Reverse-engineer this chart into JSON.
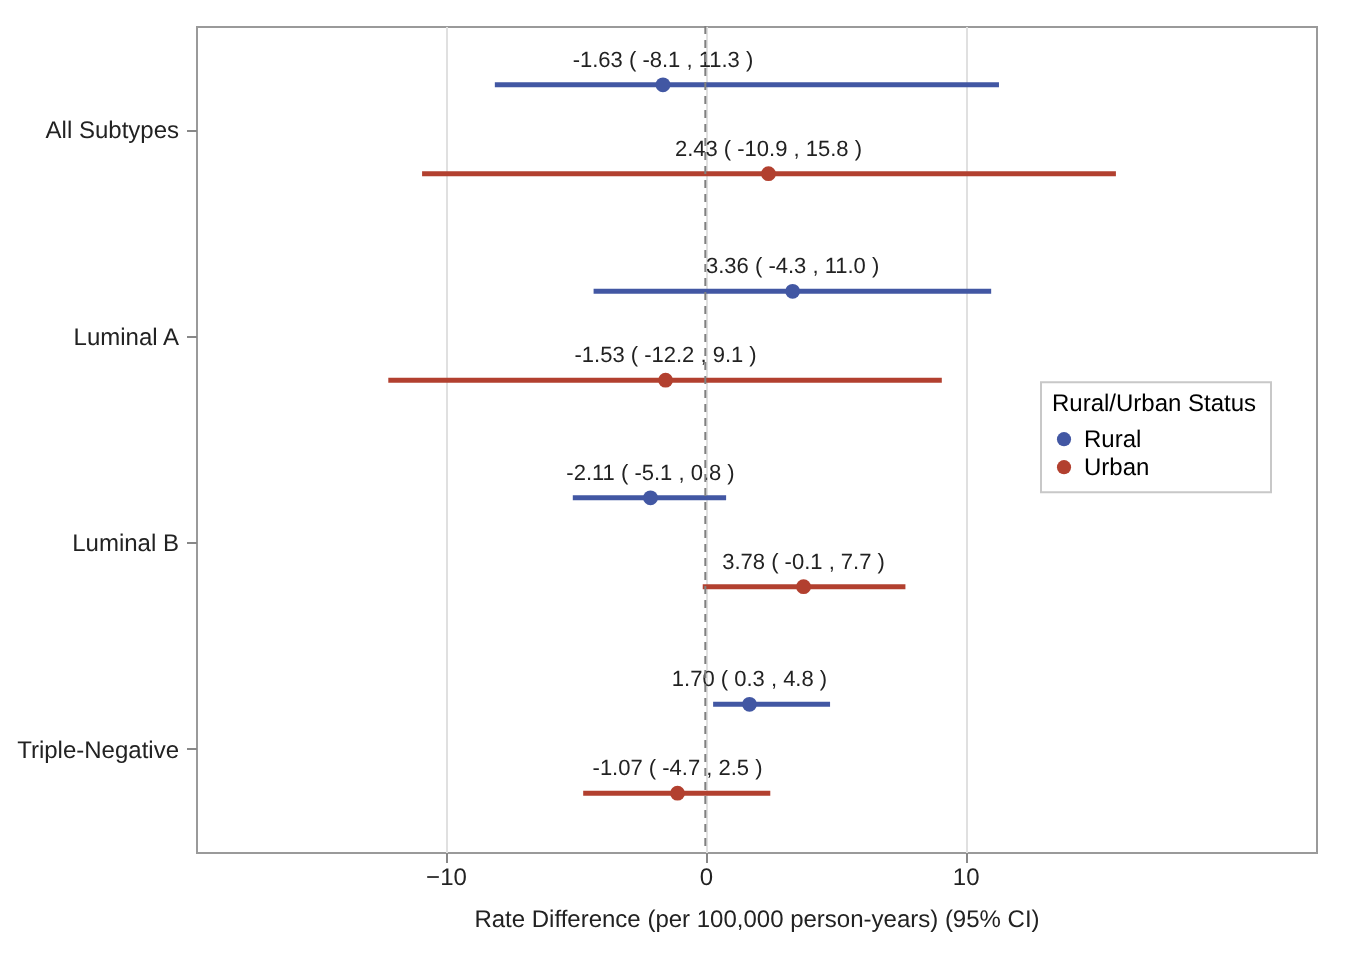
{
  "chart_data": {
    "type": "scatter",
    "orientation": "horizontal",
    "xlabel": "Rate Difference (per 100,000 person-years) (95% CI)",
    "legend_title": "Rural/Urban Status",
    "categories": [
      "All Subtypes",
      "Luminal A",
      "Luminal B",
      "Triple-Negative"
    ],
    "series": [
      {
        "name": "Rural",
        "color": "#4257a3",
        "values": [
          -1.63,
          3.36,
          -2.11,
          1.7
        ],
        "errors": [
          [
            -8.1,
            11.3
          ],
          [
            -4.3,
            11.0
          ],
          [
            -5.1,
            0.8
          ],
          [
            0.3,
            4.8
          ]
        ],
        "value_labels": [
          "-1.63 ( -8.1 , 11.3 )",
          "3.36 ( -4.3 , 11.0 )",
          "-2.11 ( -5.1 , 0.8 )",
          "1.70 ( 0.3 , 4.8 )"
        ]
      },
      {
        "name": "Urban",
        "color": "#b2402f",
        "values": [
          2.43,
          -1.53,
          3.78,
          -1.07
        ],
        "errors": [
          [
            -10.9,
            15.8
          ],
          [
            -12.2,
            9.1
          ],
          [
            -0.1,
            7.7
          ],
          [
            -4.7,
            2.5
          ]
        ],
        "value_labels": [
          "2.43 ( -10.9 , 15.8 )",
          "-1.53 ( -12.2 , 9.1 )",
          "3.78 ( -0.1 , 7.7 )",
          "-1.07 ( -4.7 , 2.5 )"
        ]
      }
    ],
    "xlim": [
      -19.6,
      23.5
    ],
    "xticks": [
      -10,
      0,
      10
    ],
    "grid": "x",
    "legend": "right",
    "marker": "circle",
    "ref_lines": [
      {
        "axis": "x",
        "value": 0,
        "color": "#808080",
        "line_style": "dashed"
      }
    ]
  }
}
